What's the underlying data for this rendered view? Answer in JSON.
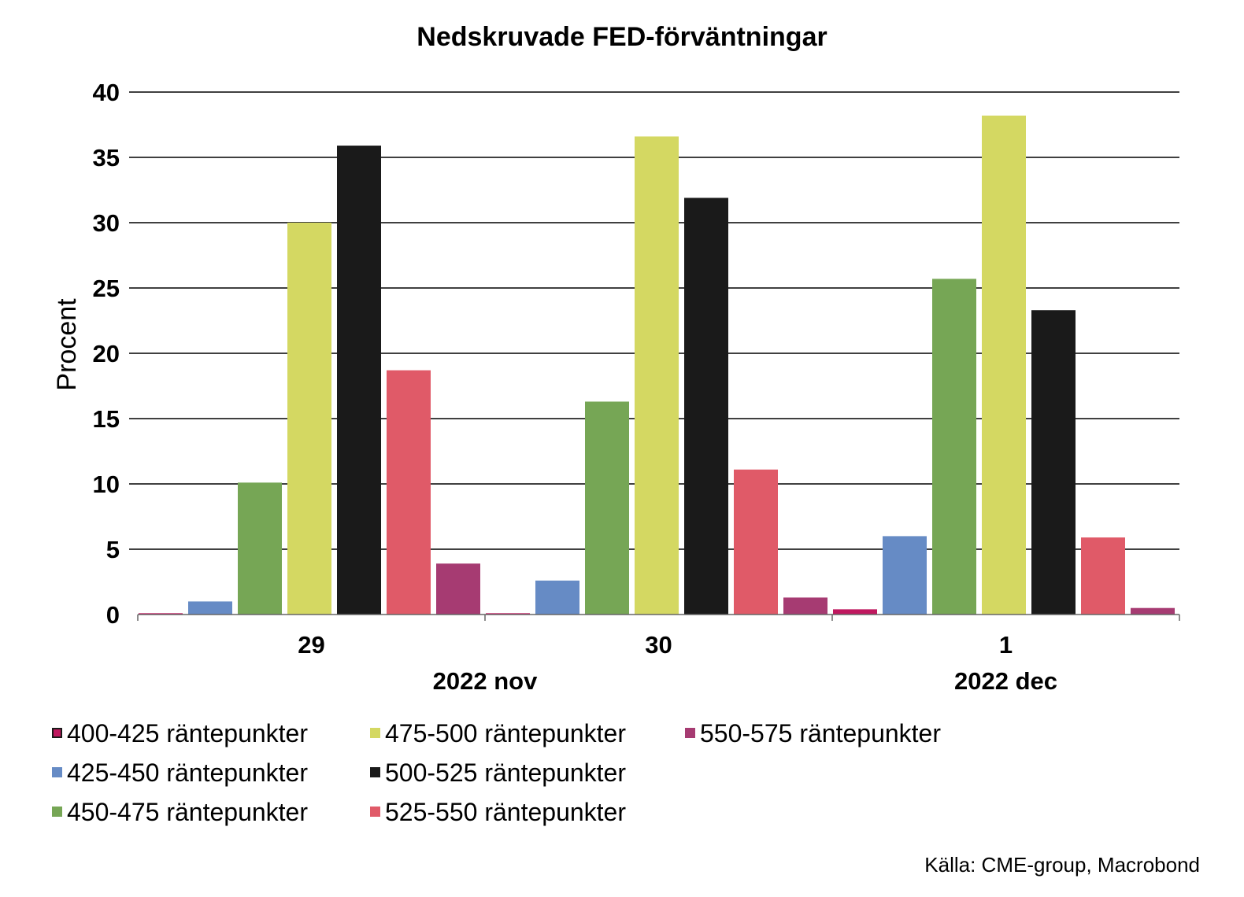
{
  "chart_data": {
    "type": "bar",
    "title": "Nedskruvade FED-förväntningar",
    "ylabel": "Procent",
    "xlabel": "",
    "ylim": [
      0,
      40
    ],
    "yticks": [
      0,
      5,
      10,
      15,
      20,
      25,
      30,
      35,
      40
    ],
    "grid": true,
    "categories": [
      "29",
      "30",
      "1"
    ],
    "category_groups": [
      {
        "label": "2022 nov",
        "categories": [
          "29",
          "30"
        ]
      },
      {
        "label": "2022 dec",
        "categories": [
          "1"
        ]
      }
    ],
    "legend_position": "bottom",
    "series": [
      {
        "name": "400-425 räntepunkter",
        "color": "#c0185f",
        "values": [
          0.1,
          0.1,
          0.4
        ]
      },
      {
        "name": "425-450 räntepunkter",
        "color": "#668bc5",
        "values": [
          1.0,
          2.6,
          6.0
        ]
      },
      {
        "name": "450-475 räntepunkter",
        "color": "#76a655",
        "values": [
          10.1,
          16.3,
          25.7
        ]
      },
      {
        "name": "475-500 räntepunkter",
        "color": "#d4d862",
        "values": [
          30.0,
          36.6,
          38.2
        ]
      },
      {
        "name": "500-525 räntepunkter",
        "color": "#1a1a1a",
        "values": [
          35.9,
          31.9,
          23.3
        ]
      },
      {
        "name": "525-550 räntepunkter",
        "color": "#e05a68",
        "values": [
          18.7,
          11.1,
          5.9
        ]
      },
      {
        "name": "550-575 räntepunkter",
        "color": "#a63b72",
        "values": [
          3.9,
          1.3,
          0.5
        ]
      }
    ]
  },
  "source_note": "Källa: CME-group, Macrobond"
}
